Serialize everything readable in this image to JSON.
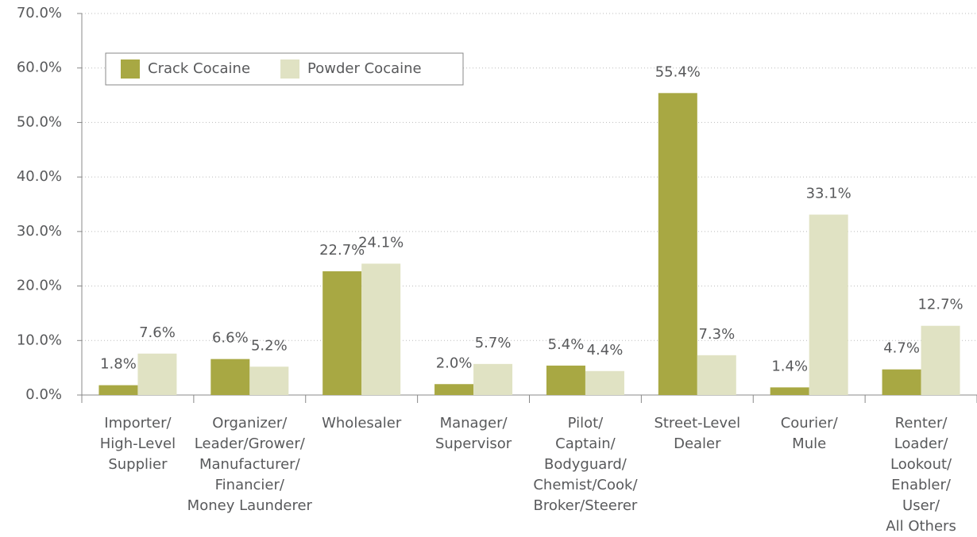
{
  "chart_data": {
    "type": "bar",
    "categories": [
      "Importer/\nHigh-Level\nSupplier",
      "Organizer/\nLeader/Grower/\nManufacturer/\nFinancier/\nMoney Launderer",
      "Wholesaler",
      "Manager/\nSupervisor",
      "Pilot/\nCaptain/\nBodyguard/\nChemist/Cook/\nBroker/Steerer",
      "Street-Level\nDealer",
      "Courier/\nMule",
      "Renter/\nLoader/\nLookout/\nEnabler/\nUser/\nAll Others"
    ],
    "series": [
      {
        "name": "Crack Cocaine",
        "color": "#a8a843",
        "values": [
          1.8,
          6.6,
          22.7,
          2.0,
          5.4,
          55.4,
          1.4,
          4.7
        ],
        "value_labels": [
          "1.8%",
          "6.6%",
          "22.7%",
          "2.0%",
          "5.4%",
          "55.4%",
          "1.4%",
          "4.7%"
        ]
      },
      {
        "name": "Powder Cocaine",
        "color": "#e0e2c3",
        "values": [
          7.6,
          5.2,
          24.1,
          5.7,
          4.4,
          7.3,
          33.1,
          12.7
        ],
        "value_labels": [
          "7.6%",
          "5.2%",
          "24.1%",
          "5.7%",
          "4.4%",
          "7.3%",
          "33.1%",
          "12.7%"
        ]
      }
    ],
    "ylim": [
      0,
      70
    ],
    "yticks": [
      {
        "value": 0,
        "label": "0.0%"
      },
      {
        "value": 10,
        "label": "10.0%"
      },
      {
        "value": 20,
        "label": "20.0%"
      },
      {
        "value": 30,
        "label": "30.0%"
      },
      {
        "value": 40,
        "label": "40.0%"
      },
      {
        "value": 50,
        "label": "50.0%"
      },
      {
        "value": 60,
        "label": "60.0%"
      },
      {
        "value": 70,
        "label": "70.0%"
      }
    ],
    "grid": true,
    "legend": "upper left"
  }
}
